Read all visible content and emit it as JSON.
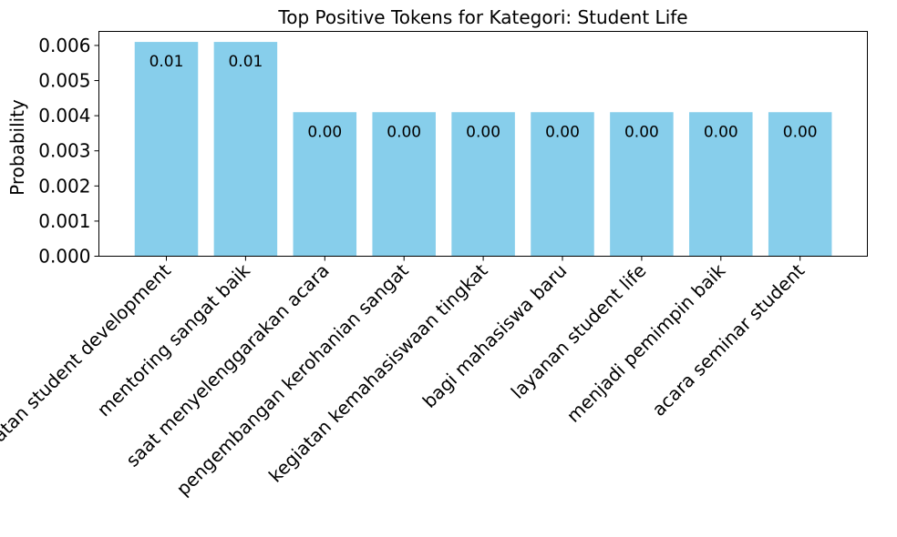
{
  "chart_data": {
    "type": "bar",
    "title": "Top Positive Tokens for Kategori: Student Life",
    "xlabel": "",
    "ylabel": "Probability",
    "categories": [
      "kegiatan student development",
      "mentoring sangat baik",
      "saat menyelenggarakan acara",
      "pengembangan kerohanian sangat",
      "kegiatan kemahasiswaan tingkat",
      "bagi mahasiswa baru",
      "layanan student life",
      "menjadi pemimpin baik",
      "acara seminar student"
    ],
    "values": [
      0.0061,
      0.0061,
      0.0041,
      0.0041,
      0.0041,
      0.0041,
      0.0041,
      0.0041,
      0.0041
    ],
    "data_labels": [
      "0.01",
      "0.01",
      "0.00",
      "0.00",
      "0.00",
      "0.00",
      "0.00",
      "0.00",
      "0.00"
    ],
    "yticks": [
      "0.000",
      "0.001",
      "0.002",
      "0.003",
      "0.004",
      "0.005",
      "0.006"
    ],
    "ylim": [
      0,
      0.0064
    ],
    "bar_color": "#87ceeb",
    "grid": false,
    "legend": "none"
  }
}
